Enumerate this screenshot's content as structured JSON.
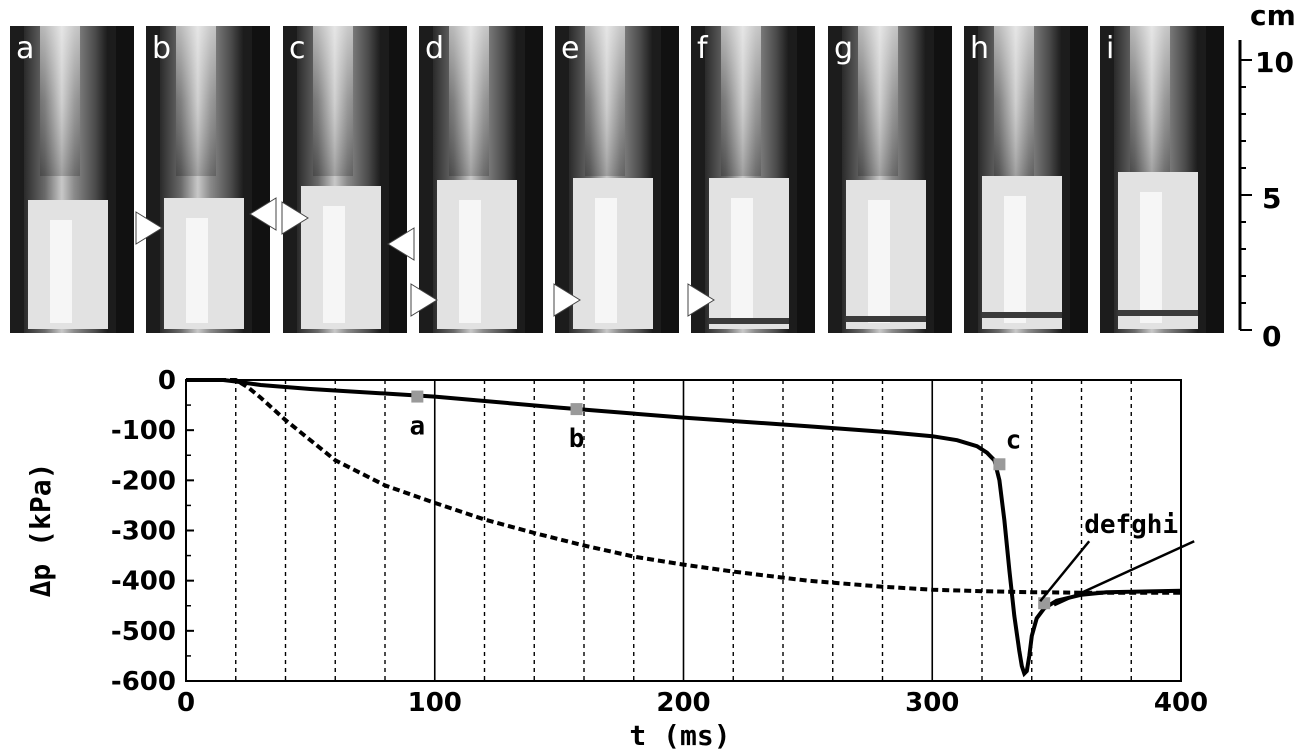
{
  "photo_panels": [
    "a",
    "b",
    "c",
    "d",
    "e",
    "f",
    "g",
    "h",
    "i"
  ],
  "scale_bar": {
    "unit": "cm",
    "ticks": [
      "10",
      "5",
      "0"
    ]
  },
  "chart_data": {
    "type": "line",
    "xlabel": "t (ms)",
    "ylabel": "Δp (kPa)",
    "xlim": [
      0,
      400
    ],
    "ylim": [
      -600,
      0
    ],
    "x_ticks": [
      "0",
      "100",
      "200",
      "300",
      "400"
    ],
    "y_ticks": [
      "0",
      "-100",
      "-200",
      "-300",
      "-400",
      "-500",
      "-600"
    ],
    "grid": "vertical lines every 20 ms (dotted), solid at 100, 200, 300",
    "series": [
      {
        "style": "solid",
        "x": [
          0,
          15,
          20,
          30,
          50,
          80,
          100,
          150,
          200,
          250,
          280,
          300,
          310,
          318,
          322,
          325,
          327,
          329,
          331,
          333,
          335,
          336,
          337,
          338,
          339,
          340,
          342,
          345,
          350,
          360,
          370,
          380,
          400
        ],
        "y": [
          0,
          0,
          -3,
          -10,
          -18,
          -27,
          -33,
          -55,
          -75,
          -92,
          -103,
          -112,
          -120,
          -132,
          -145,
          -160,
          -200,
          -280,
          -380,
          -470,
          -540,
          -570,
          -585,
          -580,
          -550,
          -510,
          -475,
          -455,
          -440,
          -428,
          -423,
          -422,
          -420
        ]
      },
      {
        "style": "dashed",
        "x": [
          0,
          20,
          25,
          30,
          40,
          50,
          60,
          80,
          100,
          120,
          140,
          160,
          180,
          200,
          220,
          250,
          280,
          300,
          320,
          340,
          360,
          380,
          400
        ],
        "y": [
          0,
          0,
          -15,
          -35,
          -80,
          -120,
          -160,
          -210,
          -245,
          -278,
          -305,
          -330,
          -352,
          -368,
          -382,
          -400,
          -412,
          -418,
          -421,
          -423,
          -424,
          -424,
          -424
        ]
      }
    ],
    "markers": [
      {
        "label": "a",
        "x": 93,
        "y": -33
      },
      {
        "label": "b",
        "x": 157,
        "y": -58
      },
      {
        "label": "c",
        "x": 327,
        "y": -168
      },
      {
        "label": "defghi",
        "x": 345,
        "y": -445
      }
    ]
  }
}
